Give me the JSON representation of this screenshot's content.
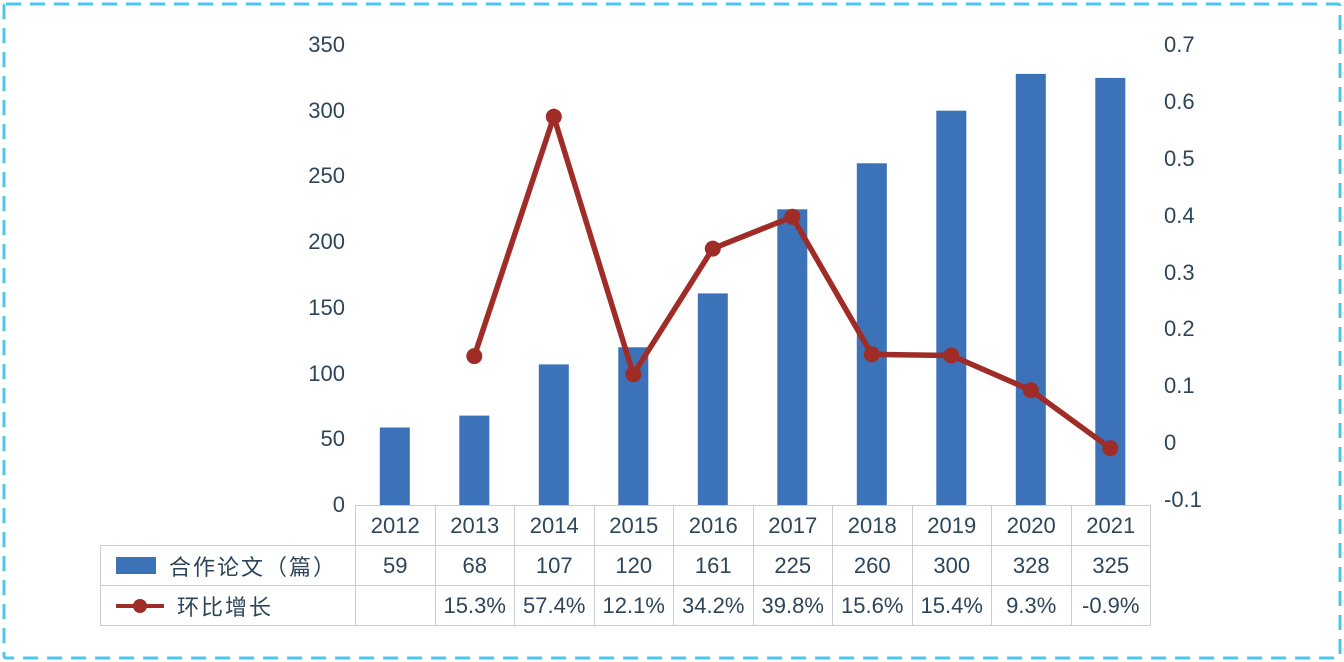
{
  "page": {
    "background": "#ffffff",
    "border_color": "#4ec4ef",
    "text_color": "#2e4559",
    "table_line_color": "#c9ccd1"
  },
  "legend": {
    "papers_label": "合作论文（篇）",
    "growth_label": "环比增长"
  },
  "chart_data": {
    "type": "combo",
    "categories": [
      "2012",
      "2013",
      "2014",
      "2015",
      "2016",
      "2017",
      "2018",
      "2019",
      "2020",
      "2021"
    ],
    "series": [
      {
        "name": "合作论文（篇）",
        "type": "bar",
        "axis": "left",
        "color": "#3b72b8",
        "values": [
          59,
          68,
          107,
          120,
          161,
          225,
          260,
          300,
          328,
          325
        ]
      },
      {
        "name": "环比增长",
        "type": "line",
        "axis": "right",
        "color": "#a02c28",
        "values": [
          null,
          0.153,
          0.574,
          0.121,
          0.342,
          0.398,
          0.156,
          0.154,
          0.093,
          -0.009
        ],
        "labels": [
          "",
          "15.3%",
          "57.4%",
          "12.1%",
          "34.2%",
          "39.8%",
          "15.6%",
          "15.4%",
          "9.3%",
          "-0.9%"
        ]
      }
    ],
    "left_axis": {
      "min": 0,
      "max": 350,
      "ticks": [
        "350",
        "300",
        "250",
        "200",
        "150",
        "100",
        "50",
        "0"
      ]
    },
    "right_axis": {
      "min": -0.1,
      "max": 0.7,
      "ticks": [
        "0.7",
        "0.6",
        "0.5",
        "0.4",
        "0.3",
        "0.2",
        "0.1",
        "0",
        "-0.1"
      ]
    },
    "grid": false,
    "legend_position": "bottom-table",
    "title": ""
  },
  "table": {
    "years": [
      "2012",
      "2013",
      "2014",
      "2015",
      "2016",
      "2017",
      "2018",
      "2019",
      "2020",
      "2021"
    ],
    "papers_row": {
      "label": "合作论文（篇）",
      "values": [
        "59",
        "68",
        "107",
        "120",
        "161",
        "225",
        "260",
        "300",
        "328",
        "325"
      ]
    },
    "growth_row": {
      "label": "环比增长",
      "values": [
        "",
        "15.3%",
        "57.4%",
        "12.1%",
        "34.2%",
        "39.8%",
        "15.6%",
        "15.4%",
        "9.3%",
        "-0.9%"
      ]
    }
  }
}
